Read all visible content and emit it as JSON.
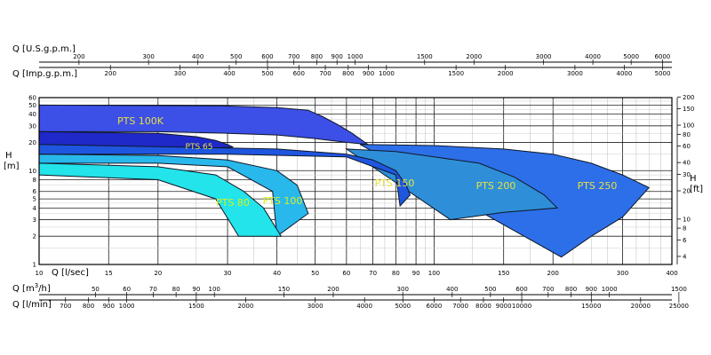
{
  "chart_data": {
    "type": "area",
    "title": "",
    "x_primary": {
      "label": "Q [l/sec]",
      "scale": "log",
      "range": [
        10,
        400
      ],
      "ticks": [
        "10",
        "15",
        "20",
        "30",
        "40",
        "50",
        "60",
        "70",
        "80",
        "90",
        "100",
        "150",
        "200",
        "300",
        "400"
      ]
    },
    "y_left": {
      "label": "H\n[m]",
      "label_lines": [
        "H",
        "[m]"
      ],
      "scale": "log",
      "range": [
        1,
        60
      ],
      "ticks": [
        "1",
        "2",
        "3",
        "4",
        "5",
        "6",
        "8",
        "10",
        "20",
        "30",
        "40",
        "50",
        "60"
      ]
    },
    "y_right": {
      "label": "H\n[ft]",
      "label_lines": [
        "H",
        "[ft]"
      ],
      "scale": "log",
      "ticks": [
        "4",
        "6",
        "8",
        "10",
        "20",
        "30",
        "40",
        "60",
        "80",
        "100",
        "150",
        "200"
      ]
    },
    "top_scales": [
      {
        "label": "Q [U.S.g.p.m.]",
        "ticks": [
          "200",
          "300",
          "400",
          "500",
          "600",
          "700",
          "800",
          "900",
          "1000",
          "1500",
          "2000",
          "3000",
          "4000",
          "5000",
          "6000"
        ]
      },
      {
        "label": "Q [Imp.g.p.m.]",
        "ticks": [
          "200",
          "300",
          "400",
          "500",
          "600",
          "700",
          "800",
          "900",
          "1000",
          "1500",
          "2000",
          "3000",
          "4000",
          "5000"
        ]
      }
    ],
    "bottom_scales": [
      {
        "label": "Q [m³/h]",
        "label_main": "Q [m",
        "label_sup": "3",
        "label_tail": "/h]",
        "ticks": [
          "50",
          "60",
          "70",
          "80",
          "90",
          "100",
          "150",
          "200",
          "300",
          "400",
          "500",
          "600",
          "700",
          "800",
          "900",
          "1000",
          "1500"
        ]
      },
      {
        "label": "Q [l/min]",
        "ticks": [
          "700",
          "800",
          "900",
          "1000",
          "1500",
          "2000",
          "3000",
          "4000",
          "5000",
          "6000",
          "7000",
          "8000",
          "9000",
          "10000",
          "15000",
          "20000",
          "25000"
        ]
      }
    ],
    "series": [
      {
        "name": "PTS 100K",
        "color": "#3c4fe6",
        "label_color": "#e8e040",
        "q": [
          10,
          29.5,
          40,
          48,
          52,
          57,
          62,
          68
        ],
        "h_top": [
          50,
          49,
          47,
          44,
          38,
          31,
          25,
          19
        ],
        "q_low": [
          10,
          20,
          30,
          40,
          50,
          60,
          68
        ],
        "h_bot": [
          26,
          26,
          25,
          24,
          22,
          20,
          19
        ]
      },
      {
        "name": "PTS 65",
        "color": "#1f28c8",
        "label_color": "#e8e040",
        "q": [
          10,
          20,
          25,
          28,
          30,
          31
        ],
        "h_top": [
          26,
          25,
          23,
          21,
          19,
          17.8
        ],
        "q_low": [
          10,
          20,
          25,
          31
        ],
        "h_bot": [
          18,
          17.5,
          17,
          17.8
        ]
      },
      {
        "name": "PTS 250",
        "color": "#2d6fe8",
        "label_color": "#e8e040",
        "q": [
          65,
          100,
          150,
          200,
          250,
          300,
          350
        ],
        "h_top": [
          19,
          18.5,
          17,
          15,
          12,
          9,
          6.6
        ],
        "q_low": [
          210,
          250,
          300,
          350
        ],
        "h_bot": [
          1.2,
          2,
          3.2,
          6.6
        ]
      },
      {
        "name": "PTS 200",
        "color": "#2e8fd8",
        "label_color": "#e8e040",
        "q": [
          60,
          80,
          100,
          130,
          160,
          190,
          205
        ],
        "h_top": [
          17,
          16,
          14,
          12,
          8.5,
          5.5,
          4
        ],
        "q_low": [
          110,
          150,
          205
        ],
        "h_bot": [
          3,
          3.6,
          4
        ]
      },
      {
        "name": "PTS 150",
        "color": "#1e56e0",
        "label_color": "#e8e040",
        "q": [
          10,
          20,
          40,
          60,
          70,
          80,
          85,
          87
        ],
        "h_top": [
          19,
          18,
          17,
          15,
          13,
          10,
          7,
          5.5
        ],
        "q_low": [
          10,
          30,
          60,
          80,
          82
        ],
        "h_bot": [
          15,
          15,
          14,
          9,
          4.2
        ]
      },
      {
        "name": "PTS 100",
        "color": "#29b8ec",
        "label_color": "#d8f020",
        "q": [
          10,
          20,
          30,
          40,
          45,
          48
        ],
        "h_top": [
          15,
          14.5,
          13,
          10,
          7,
          3.5
        ],
        "q_low": [
          10,
          20,
          30,
          39,
          40,
          48
        ],
        "h_bot": [
          12,
          12,
          11,
          6,
          2,
          3.5
        ]
      },
      {
        "name": "PTS 80",
        "color": "#22e4ea",
        "label_color": "#d8f020",
        "q": [
          10,
          20,
          28,
          33,
          37,
          41
        ],
        "h_top": [
          12,
          11,
          9,
          6,
          4,
          2
        ],
        "q_low": [
          10,
          20,
          28,
          32,
          36,
          41
        ],
        "h_bot": [
          9,
          8,
          5,
          2,
          2,
          2
        ]
      }
    ],
    "grid": true,
    "legend": "none (labels inside zones)"
  }
}
